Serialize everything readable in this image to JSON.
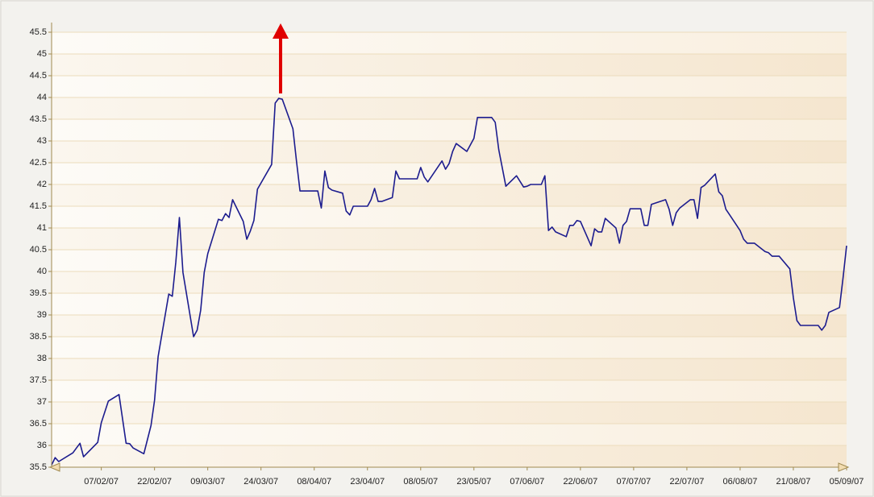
{
  "chart_data": {
    "type": "line",
    "color": "#1c1c8e",
    "grid": true,
    "ylim": [
      35.5,
      45.5
    ],
    "yticks": [
      35.5,
      36,
      36.5,
      37,
      37.5,
      38,
      38.5,
      39,
      39.5,
      40,
      40.5,
      41,
      41.5,
      42,
      42.5,
      43,
      43.5,
      44,
      44.5,
      45,
      45.5
    ],
    "xlim": [
      "2007-01-24",
      "2007-09-05"
    ],
    "xticks": [
      {
        "value": "2007-02-07",
        "label": "07/02/07"
      },
      {
        "value": "2007-02-22",
        "label": "22/02/07"
      },
      {
        "value": "2007-03-09",
        "label": "09/03/07"
      },
      {
        "value": "2007-03-24",
        "label": "24/03/07"
      },
      {
        "value": "2007-04-08",
        "label": "08/04/07"
      },
      {
        "value": "2007-04-23",
        "label": "23/04/07"
      },
      {
        "value": "2007-05-08",
        "label": "08/05/07"
      },
      {
        "value": "2007-05-23",
        "label": "23/05/07"
      },
      {
        "value": "2007-06-07",
        "label": "07/06/07"
      },
      {
        "value": "2007-06-22",
        "label": "22/06/07"
      },
      {
        "value": "2007-07-07",
        "label": "07/07/07"
      },
      {
        "value": "2007-07-22",
        "label": "22/07/07"
      },
      {
        "value": "2007-08-06",
        "label": "06/08/07"
      },
      {
        "value": "2007-08-21",
        "label": "21/08/07"
      },
      {
        "value": "2007-09-05",
        "label": "05/09/07"
      }
    ],
    "x": [
      "2007-01-24",
      "2007-01-25",
      "2007-01-26",
      "2007-01-30",
      "2007-01-31",
      "2007-02-01",
      "2007-02-02",
      "2007-02-06",
      "2007-02-07",
      "2007-02-09",
      "2007-02-12",
      "2007-02-14",
      "2007-02-15",
      "2007-02-16",
      "2007-02-19",
      "2007-02-20",
      "2007-02-21",
      "2007-02-22",
      "2007-02-23",
      "2007-02-26",
      "2007-02-27",
      "2007-02-28",
      "2007-03-01",
      "2007-03-02",
      "2007-03-05",
      "2007-03-06",
      "2007-03-07",
      "2007-03-08",
      "2007-03-09",
      "2007-03-12",
      "2007-03-13",
      "2007-03-14",
      "2007-03-15",
      "2007-03-16",
      "2007-03-19",
      "2007-03-20",
      "2007-03-21",
      "2007-03-22",
      "2007-03-23",
      "2007-03-27",
      "2007-03-28",
      "2007-03-29",
      "2007-03-30",
      "2007-04-02",
      "2007-04-03",
      "2007-04-04",
      "2007-04-09",
      "2007-04-10",
      "2007-04-11",
      "2007-04-12",
      "2007-04-13",
      "2007-04-16",
      "2007-04-17",
      "2007-04-18",
      "2007-04-19",
      "2007-04-23",
      "2007-04-24",
      "2007-04-25",
      "2007-04-26",
      "2007-04-27",
      "2007-04-30",
      "2007-05-01",
      "2007-05-02",
      "2007-05-07",
      "2007-05-08",
      "2007-05-09",
      "2007-05-10",
      "2007-05-14",
      "2007-05-15",
      "2007-05-16",
      "2007-05-17",
      "2007-05-18",
      "2007-05-21",
      "2007-05-22",
      "2007-05-23",
      "2007-05-24",
      "2007-05-25",
      "2007-05-28",
      "2007-05-29",
      "2007-05-30",
      "2007-06-01",
      "2007-06-04",
      "2007-06-05",
      "2007-06-06",
      "2007-06-07",
      "2007-06-08",
      "2007-06-11",
      "2007-06-12",
      "2007-06-13",
      "2007-06-14",
      "2007-06-15",
      "2007-06-18",
      "2007-06-19",
      "2007-06-20",
      "2007-06-21",
      "2007-06-22",
      "2007-06-25",
      "2007-06-26",
      "2007-06-27",
      "2007-06-28",
      "2007-06-29",
      "2007-07-02",
      "2007-07-03",
      "2007-07-04",
      "2007-07-05",
      "2007-07-06",
      "2007-07-09",
      "2007-07-10",
      "2007-07-11",
      "2007-07-12",
      "2007-07-16",
      "2007-07-17",
      "2007-07-18",
      "2007-07-19",
      "2007-07-20",
      "2007-07-23",
      "2007-07-24",
      "2007-07-25",
      "2007-07-26",
      "2007-07-27",
      "2007-07-30",
      "2007-07-31",
      "2007-08-01",
      "2007-08-02",
      "2007-08-03",
      "2007-08-06",
      "2007-08-07",
      "2007-08-08",
      "2007-08-10",
      "2007-08-13",
      "2007-08-14",
      "2007-08-15",
      "2007-08-16",
      "2007-08-17",
      "2007-08-20",
      "2007-08-21",
      "2007-08-22",
      "2007-08-23",
      "2007-08-24",
      "2007-08-28",
      "2007-08-29",
      "2007-08-30",
      "2007-08-31",
      "2007-09-03",
      "2007-09-04",
      "2007-09-05"
    ],
    "values": [
      35.55,
      35.72,
      35.63,
      35.83,
      35.94,
      36.05,
      35.74,
      36.07,
      36.52,
      37.02,
      37.17,
      36.05,
      36.04,
      35.94,
      35.81,
      36.13,
      36.46,
      37.04,
      38.04,
      39.48,
      39.43,
      40.22,
      41.24,
      39.98,
      38.5,
      38.65,
      39.11,
      39.98,
      40.41,
      41.2,
      41.17,
      41.33,
      41.24,
      41.65,
      41.15,
      40.74,
      40.93,
      41.17,
      41.89,
      42.46,
      43.87,
      43.98,
      43.96,
      43.28,
      42.54,
      41.85,
      41.85,
      41.46,
      42.31,
      41.93,
      41.87,
      41.8,
      41.39,
      41.3,
      41.5,
      41.5,
      41.65,
      41.91,
      41.61,
      41.61,
      41.7,
      42.31,
      42.13,
      42.13,
      42.39,
      42.17,
      42.06,
      42.54,
      42.35,
      42.48,
      42.76,
      42.94,
      42.76,
      42.91,
      43.06,
      43.54,
      43.54,
      43.54,
      43.43,
      42.8,
      41.96,
      42.2,
      42.07,
      41.94,
      41.96,
      42.0,
      42.0,
      42.2,
      40.94,
      41.02,
      40.91,
      40.8,
      41.06,
      41.06,
      41.17,
      41.15,
      40.59,
      40.98,
      40.91,
      40.91,
      41.22,
      41.0,
      40.65,
      41.06,
      41.15,
      41.44,
      41.44,
      41.06,
      41.06,
      41.54,
      41.65,
      41.43,
      41.06,
      41.35,
      41.46,
      41.65,
      41.65,
      41.22,
      41.93,
      41.98,
      42.24,
      41.83,
      41.74,
      41.43,
      41.31,
      40.94,
      40.74,
      40.65,
      40.65,
      40.46,
      40.43,
      40.35,
      40.35,
      40.35,
      40.06,
      39.39,
      38.87,
      38.76,
      38.76,
      38.76,
      38.65,
      38.76,
      39.06,
      39.17,
      39.85,
      40.59
    ]
  }
}
